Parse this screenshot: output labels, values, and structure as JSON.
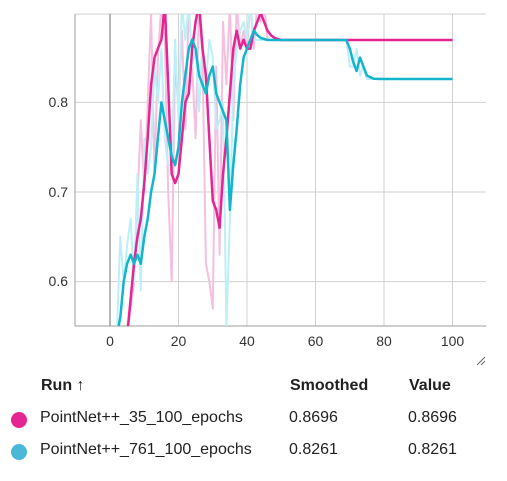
{
  "chart_data": {
    "type": "line",
    "title": "",
    "xlabel": "",
    "ylabel": "",
    "xlim": [
      -10,
      102
    ],
    "ylim": [
      0.55,
      0.91
    ],
    "x_ticks": [
      "0",
      "20",
      "40",
      "60",
      "80",
      "100"
    ],
    "y_ticks": [
      "0.6",
      "0.7",
      "0.8"
    ],
    "y_tick_values": [
      0.6,
      0.7,
      0.8
    ],
    "x_tick_values": [
      0,
      20,
      40,
      60,
      80,
      100
    ],
    "grid": true,
    "series": [
      {
        "name": "PointNet++_35_100_epochs",
        "color": "#e52592",
        "raw_color": "#f5bfdf",
        "smoothed": [
          [
            5,
            0.54
          ],
          [
            6,
            0.58
          ],
          [
            7,
            0.62
          ],
          [
            8,
            0.65
          ],
          [
            9,
            0.67
          ],
          [
            10,
            0.71
          ],
          [
            11,
            0.76
          ],
          [
            12,
            0.82
          ],
          [
            13,
            0.85
          ],
          [
            14,
            0.86
          ],
          [
            15,
            0.87
          ],
          [
            16,
            0.91
          ],
          [
            17,
            0.82
          ],
          [
            18,
            0.72
          ],
          [
            19,
            0.71
          ],
          [
            20,
            0.72
          ],
          [
            21,
            0.76
          ],
          [
            22,
            0.8
          ],
          [
            23,
            0.81
          ],
          [
            24,
            0.86
          ],
          [
            25,
            0.89
          ],
          [
            26,
            0.91
          ],
          [
            27,
            0.86
          ],
          [
            28,
            0.83
          ],
          [
            29,
            0.76
          ],
          [
            30,
            0.69
          ],
          [
            31,
            0.68
          ],
          [
            32,
            0.66
          ],
          [
            33,
            0.72
          ],
          [
            34,
            0.76
          ],
          [
            35,
            0.81
          ],
          [
            36,
            0.86
          ],
          [
            37,
            0.88
          ],
          [
            38,
            0.86
          ],
          [
            39,
            0.87
          ],
          [
            40,
            0.86
          ],
          [
            41,
            0.86
          ],
          [
            42,
            0.88
          ],
          [
            43,
            0.89
          ],
          [
            44,
            0.9
          ],
          [
            45,
            0.89
          ],
          [
            46,
            0.88
          ],
          [
            47,
            0.875
          ],
          [
            48,
            0.872
          ],
          [
            50,
            0.8696
          ],
          [
            55,
            0.8696
          ],
          [
            60,
            0.8696
          ],
          [
            70,
            0.8696
          ],
          [
            80,
            0.8696
          ],
          [
            90,
            0.8696
          ],
          [
            100,
            0.8696
          ]
        ],
        "raw": [
          [
            5,
            0.54
          ],
          [
            7,
            0.6
          ],
          [
            9,
            0.78
          ],
          [
            10,
            0.7
          ],
          [
            12,
            0.9
          ],
          [
            13,
            0.72
          ],
          [
            14,
            0.85
          ],
          [
            15,
            0.91
          ],
          [
            16,
            0.87
          ],
          [
            17,
            0.7
          ],
          [
            18,
            0.6
          ],
          [
            19,
            0.85
          ],
          [
            20,
            0.79
          ],
          [
            21,
            0.88
          ],
          [
            22,
            0.77
          ],
          [
            23,
            0.91
          ],
          [
            24,
            0.84
          ],
          [
            25,
            0.76
          ],
          [
            26,
            0.91
          ],
          [
            27,
            0.85
          ],
          [
            28,
            0.62
          ],
          [
            29,
            0.6
          ],
          [
            30,
            0.57
          ],
          [
            31,
            0.84
          ],
          [
            32,
            0.63
          ],
          [
            33,
            0.89
          ],
          [
            34,
            0.82
          ],
          [
            35,
            0.91
          ],
          [
            36,
            0.78
          ],
          [
            37,
            0.91
          ],
          [
            38,
            0.86
          ],
          [
            39,
            0.88
          ],
          [
            40,
            0.86
          ],
          [
            41,
            0.91
          ],
          [
            42,
            0.86
          ],
          [
            43,
            0.91
          ],
          [
            44,
            0.89
          ],
          [
            45,
            0.91
          ],
          [
            46,
            0.87
          ],
          [
            48,
            0.8696
          ],
          [
            100,
            0.8696
          ]
        ],
        "smoothed_value": "0.8696",
        "value": "0.8696"
      },
      {
        "name": "PointNet++_761_100_epochs",
        "color": "#12b5cb",
        "raw_color": "#bdeff6",
        "smoothed": [
          [
            2,
            0.54
          ],
          [
            3,
            0.56
          ],
          [
            4,
            0.6
          ],
          [
            5,
            0.62
          ],
          [
            6,
            0.63
          ],
          [
            7,
            0.62
          ],
          [
            8,
            0.63
          ],
          [
            9,
            0.62
          ],
          [
            10,
            0.65
          ],
          [
            11,
            0.67
          ],
          [
            12,
            0.7
          ],
          [
            13,
            0.72
          ],
          [
            14,
            0.76
          ],
          [
            15,
            0.8
          ],
          [
            16,
            0.78
          ],
          [
            17,
            0.76
          ],
          [
            18,
            0.74
          ],
          [
            19,
            0.73
          ],
          [
            20,
            0.75
          ],
          [
            21,
            0.8
          ],
          [
            22,
            0.83
          ],
          [
            23,
            0.86
          ],
          [
            24,
            0.87
          ],
          [
            25,
            0.86
          ],
          [
            26,
            0.83
          ],
          [
            27,
            0.82
          ],
          [
            28,
            0.81
          ],
          [
            29,
            0.83
          ],
          [
            30,
            0.84
          ],
          [
            31,
            0.81
          ],
          [
            32,
            0.8
          ],
          [
            33,
            0.79
          ],
          [
            34,
            0.78
          ],
          [
            35,
            0.68
          ],
          [
            36,
            0.73
          ],
          [
            37,
            0.77
          ],
          [
            38,
            0.82
          ],
          [
            39,
            0.85
          ],
          [
            40,
            0.86
          ],
          [
            41,
            0.87
          ],
          [
            42,
            0.88
          ],
          [
            43,
            0.875
          ],
          [
            44,
            0.872
          ],
          [
            46,
            0.8696
          ],
          [
            50,
            0.8696
          ],
          [
            60,
            0.8696
          ],
          [
            69,
            0.8696
          ],
          [
            70,
            0.86
          ],
          [
            71,
            0.845
          ],
          [
            72,
            0.835
          ],
          [
            73,
            0.85
          ],
          [
            74,
            0.84
          ],
          [
            75,
            0.83
          ],
          [
            77,
            0.8265
          ],
          [
            80,
            0.8261
          ],
          [
            90,
            0.8261
          ],
          [
            100,
            0.8261
          ]
        ],
        "raw": [
          [
            2,
            0.54
          ],
          [
            3,
            0.65
          ],
          [
            4,
            0.6
          ],
          [
            5,
            0.64
          ],
          [
            6,
            0.67
          ],
          [
            7,
            0.6
          ],
          [
            8,
            0.72
          ],
          [
            9,
            0.59
          ],
          [
            10,
            0.76
          ],
          [
            11,
            0.72
          ],
          [
            12,
            0.75
          ],
          [
            13,
            0.84
          ],
          [
            14,
            0.8
          ],
          [
            15,
            0.86
          ],
          [
            16,
            0.76
          ],
          [
            17,
            0.73
          ],
          [
            18,
            0.73
          ],
          [
            19,
            0.87
          ],
          [
            20,
            0.78
          ],
          [
            21,
            0.91
          ],
          [
            22,
            0.87
          ],
          [
            23,
            0.91
          ],
          [
            24,
            0.84
          ],
          [
            25,
            0.86
          ],
          [
            26,
            0.79
          ],
          [
            27,
            0.87
          ],
          [
            28,
            0.82
          ],
          [
            29,
            0.87
          ],
          [
            30,
            0.85
          ],
          [
            31,
            0.77
          ],
          [
            32,
            0.78
          ],
          [
            33,
            0.8
          ],
          [
            34,
            0.55
          ],
          [
            35,
            0.67
          ],
          [
            36,
            0.82
          ],
          [
            37,
            0.86
          ],
          [
            38,
            0.88
          ],
          [
            39,
            0.89
          ],
          [
            40,
            0.87
          ],
          [
            41,
            0.91
          ],
          [
            42,
            0.87
          ],
          [
            44,
            0.8696
          ],
          [
            69,
            0.8696
          ],
          [
            70,
            0.84
          ],
          [
            71,
            0.84
          ],
          [
            72,
            0.86
          ],
          [
            73,
            0.83
          ],
          [
            74,
            0.84
          ],
          [
            75,
            0.8261
          ],
          [
            100,
            0.8261
          ]
        ],
        "smoothed_value": "0.8261",
        "value": "0.8261"
      }
    ]
  },
  "table": {
    "headers": {
      "run": "Run ↑",
      "smoothed": "Smoothed",
      "value": "Value"
    },
    "rows": [
      {
        "name": "PointNet++_35_100_epochs",
        "smoothed": "0.8696",
        "value": "0.8696",
        "color": "#e52592"
      },
      {
        "name": "PointNet++_761_100_epochs",
        "smoothed": "0.8261",
        "value": "0.8261",
        "color": "#4ab8d6"
      }
    ]
  }
}
